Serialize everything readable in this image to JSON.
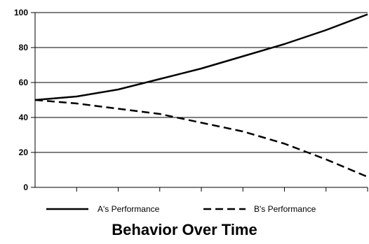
{
  "chart_data": {
    "type": "line",
    "title": "Behavior Over Time",
    "xlabel": "",
    "ylabel": "",
    "ylim": [
      0,
      100
    ],
    "yticks": [
      0,
      20,
      40,
      60,
      80,
      100
    ],
    "x": [
      0,
      1,
      2,
      3,
      4,
      5,
      6,
      7,
      8
    ],
    "grid": "horizontal",
    "legend_position": "bottom",
    "series": [
      {
        "name": "A's Performance",
        "style": "solid",
        "color": "#000000",
        "values": [
          50,
          52,
          56,
          62,
          68,
          75,
          82,
          90,
          99
        ]
      },
      {
        "name": "B's Performance",
        "style": "dashed",
        "color": "#000000",
        "values": [
          50,
          48,
          45,
          42,
          37,
          32,
          25,
          16,
          6
        ]
      }
    ]
  }
}
